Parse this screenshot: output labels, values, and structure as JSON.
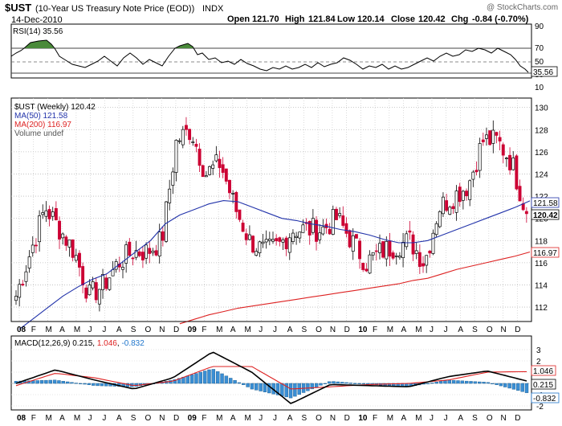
{
  "header": {
    "symbol": "$UST",
    "description": "(10-Year US Treasury Note Price (EOD))",
    "exchange": "INDX",
    "copyright": "@ StockCharts.com",
    "date": "14-Dec-2010",
    "quote": {
      "open_label": "Open",
      "open": "121.70",
      "high_label": "High",
      "high": "121.84",
      "low_label": "Low",
      "low": "120.14",
      "close_label": "Close",
      "close": "120.42",
      "chg_label": "Chg",
      "chg": "-0.84 (-0.70%)"
    }
  },
  "rsi": {
    "label": "RSI(14) 35.56",
    "value_badge": "35.56",
    "levels": [
      "90",
      "70",
      "50",
      "30",
      "10"
    ]
  },
  "price": {
    "legend": [
      "$UST (Weekly) 120.42",
      "MA(50) 121.58",
      "MA(200) 116.97",
      "Volume undef"
    ],
    "badges": {
      "ma50": "121.58",
      "close": "120.42",
      "ma200": "116.97"
    },
    "y_ticks": [
      "130",
      "128",
      "126",
      "124",
      "122",
      "120",
      "118",
      "116",
      "114",
      "112"
    ]
  },
  "macd": {
    "label_prefix": "MACD(12,26,9)",
    "macd_value": "0.215",
    "signal_value": "1.046",
    "hist_value": "-0.832",
    "y_ticks": [
      "3",
      "2",
      "1",
      "0",
      "-1",
      "-2"
    ],
    "badges": {
      "signal": "1.046",
      "macd": "0.215",
      "hist": "-0.832"
    }
  },
  "x_axis": [
    "08",
    "F",
    "M",
    "A",
    "M",
    "J",
    "J",
    "A",
    "S",
    "O",
    "N",
    "D",
    "09",
    "F",
    "M",
    "A",
    "M",
    "J",
    "J",
    "A",
    "S",
    "O",
    "N",
    "D",
    "10",
    "F",
    "M",
    "A",
    "M",
    "J",
    "J",
    "A",
    "S",
    "O",
    "N",
    "D"
  ],
  "colors": {
    "up": "#000000",
    "down": "#cc0033",
    "ma50": "#2233aa",
    "ma200": "#dd2222",
    "rsi_fill": "#4a8a3a",
    "macd_signal": "#dd2222",
    "histogram": "#3a8ed4"
  },
  "chart_data": [
    {
      "type": "line",
      "title": "RSI(14)",
      "ylim": [
        0,
        100
      ],
      "x": [
        "Jan 08",
        "Apr 08",
        "Jul 08",
        "Oct 08",
        "Jan 09",
        "Apr 09",
        "Jul 09",
        "Oct 09",
        "Jan 10",
        "Apr 10",
        "Jul 10",
        "Oct 10",
        "Dec 10"
      ],
      "values": [
        60,
        72,
        40,
        55,
        68,
        50,
        42,
        50,
        52,
        48,
        60,
        70,
        35.56
      ]
    },
    {
      "type": "candlestick",
      "title": "$UST (Weekly) 120.42",
      "ylim": [
        111,
        131
      ],
      "x": [
        "Jan 08",
        "Feb 08",
        "Mar 08",
        "Apr 08",
        "May 08",
        "Jun 08",
        "Jul 08",
        "Aug 08",
        "Sep 08",
        "Oct 08",
        "Nov 08",
        "Dec 08",
        "Jan 09",
        "Feb 09",
        "Mar 09",
        "Apr 09",
        "May 09",
        "Jun 09",
        "Jul 09",
        "Aug 09",
        "Sep 09",
        "Oct 09",
        "Nov 09",
        "Dec 09",
        "Jan 10",
        "Feb 10",
        "Mar 10",
        "Apr 10",
        "May 10",
        "Jun 10",
        "Jul 10",
        "Aug 10",
        "Sep 10",
        "Oct 10",
        "Nov 10",
        "Dec 10"
      ],
      "series": [
        {
          "name": "Close",
          "values": [
            113,
            117,
            121,
            119,
            117,
            113,
            114,
            116,
            117,
            117,
            118,
            127,
            128,
            124,
            125,
            121,
            118,
            117,
            117.5,
            119,
            119,
            119,
            120,
            118,
            116,
            117,
            117.5,
            118,
            116,
            121,
            122,
            123,
            127,
            127,
            125,
            120.42
          ]
        },
        {
          "name": "MA(50)",
          "values": [
            110,
            111,
            112,
            113,
            113.8,
            114.5,
            115,
            116,
            117,
            118,
            119.5,
            120.3,
            120.8,
            121.3,
            121.6,
            121.5,
            121,
            120.5,
            120,
            119.8,
            119.5,
            119.3,
            119,
            118.8,
            118.5,
            118.1,
            117.8,
            117.8,
            118,
            118.5,
            119,
            119.5,
            120,
            120.5,
            121,
            121.58
          ]
        },
        {
          "name": "MA(200)",
          "values": [
            null,
            null,
            null,
            null,
            null,
            null,
            null,
            null,
            null,
            null,
            null,
            110.5,
            110.9,
            111.3,
            111.6,
            111.9,
            112.1,
            112.3,
            112.5,
            112.7,
            112.9,
            113.1,
            113.3,
            113.5,
            113.7,
            113.9,
            114.1,
            114.4,
            114.6,
            115,
            115.4,
            115.7,
            116,
            116.3,
            116.6,
            116.97
          ]
        }
      ]
    },
    {
      "type": "line",
      "title": "MACD(12,26,9)",
      "ylim": [
        -2.5,
        3
      ],
      "x": [
        "Jan 08",
        "Apr 08",
        "Jul 08",
        "Oct 08",
        "Dec 08",
        "Jan 09",
        "Apr 09",
        "Jul 09",
        "Oct 09",
        "Jan 10",
        "Apr 10",
        "Jul 10",
        "Oct 10",
        "Dec 10"
      ],
      "series": [
        {
          "name": "MACD",
          "values": [
            0,
            1.2,
            0.3,
            -0.5,
            0.5,
            2.8,
            1.0,
            -1.8,
            -0.1,
            -0.2,
            -0.3,
            0.6,
            1.1,
            0.215
          ]
        },
        {
          "name": "Signal",
          "values": [
            -0.2,
            0.9,
            0.5,
            -0.2,
            0.2,
            1.5,
            1.5,
            -0.5,
            -0.3,
            -0.1,
            0,
            0.3,
            1.0,
            1.046
          ]
        },
        {
          "name": "Histogram",
          "values": [
            0.2,
            0.3,
            -0.2,
            -0.3,
            0.3,
            1.3,
            -0.5,
            -1.3,
            0.2,
            -0.1,
            -0.3,
            0.3,
            0.1,
            -0.832
          ]
        }
      ]
    }
  ]
}
